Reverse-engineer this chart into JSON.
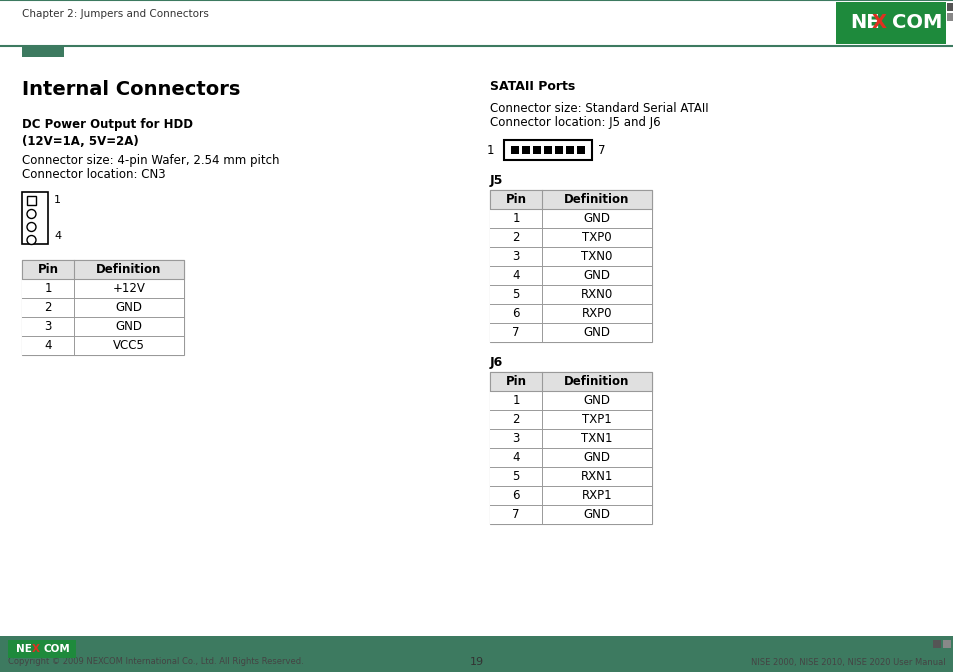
{
  "page_title": "Chapter 2: Jumpers and Connectors",
  "page_number": "19",
  "footer_left": "Copyright © 2009 NEXCOM International Co., Ltd. All Rights Reserved.",
  "footer_right": "NISE 2000, NISE 2010, NISE 2020 User Manual",
  "main_title": "Internal Connectors",
  "section1_title": "DC Power Output for HDD\n(12V=1A, 5V=2A)",
  "section1_text1": "Connector size: 4-pin Wafer, 2.54 mm pitch",
  "section1_text2": "Connector location: CN3",
  "section1_table_headers": [
    "Pin",
    "Definition"
  ],
  "section1_table_rows": [
    [
      "1",
      "+12V"
    ],
    [
      "2",
      "GND"
    ],
    [
      "3",
      "GND"
    ],
    [
      "4",
      "VCC5"
    ]
  ],
  "section2_title": "SATAII Ports",
  "section2_text1": "Connector size: Standard Serial ATAII",
  "section2_text2": "Connector location: J5 and J6",
  "j5_label": "J5",
  "j5_table_headers": [
    "Pin",
    "Definition"
  ],
  "j5_table_rows": [
    [
      "1",
      "GND"
    ],
    [
      "2",
      "TXP0"
    ],
    [
      "3",
      "TXN0"
    ],
    [
      "4",
      "GND"
    ],
    [
      "5",
      "RXN0"
    ],
    [
      "6",
      "RXP0"
    ],
    [
      "7",
      "GND"
    ]
  ],
  "j6_label": "J6",
  "j6_table_headers": [
    "Pin",
    "Definition"
  ],
  "j6_table_rows": [
    [
      "1",
      "GND"
    ],
    [
      "2",
      "TXP1"
    ],
    [
      "3",
      "TXN1"
    ],
    [
      "4",
      "GND"
    ],
    [
      "5",
      "RXN1"
    ],
    [
      "6",
      "RXP1"
    ],
    [
      "7",
      "GND"
    ]
  ],
  "header_bar_color": "#3d7a60",
  "footer_bar_color": "#3d7a60",
  "nexcom_green_bg": "#1e8a3c",
  "nexcom_blue_bg": "#1a5fa8",
  "table_header_bg": "#e0e0e0",
  "table_border_color": "#999999",
  "bg_color": "#ffffff",
  "text_color": "#000000",
  "accent_dark": "#444444",
  "accent_square1": "#555555",
  "accent_square2": "#999999"
}
